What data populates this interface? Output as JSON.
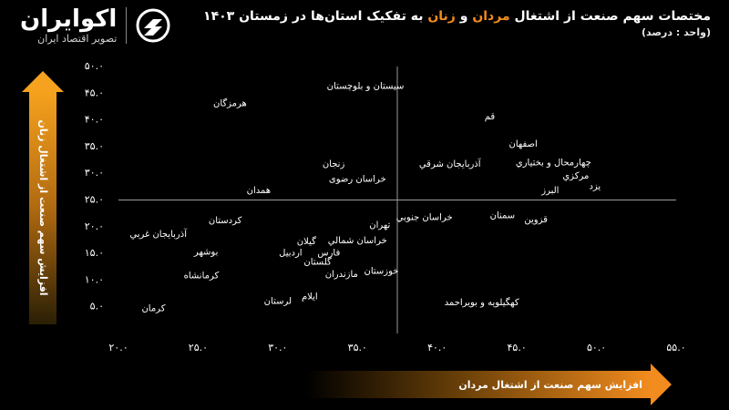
{
  "brand": {
    "name": "اکوایران",
    "tagline": "تصویر اقتصاد ایران"
  },
  "header": {
    "title_part1": "مختصات سهم صنعت از اشتغال ",
    "title_men": "مردان",
    "title_and": " و ",
    "title_women": "زنان",
    "title_part2": " به تفکیک استان‌ها در زمستان ۱۴۰۳",
    "unit": "(واحد : درصد)"
  },
  "colors": {
    "background": "#000000",
    "accent_orange": "#f28c1e",
    "arrow_dark": "#3a2a05",
    "text": "#ffffff",
    "quadrant_lines": "#9a9a9a"
  },
  "chart_data": {
    "type": "scatter",
    "xlabel": "افزایش سهم صنعت از اشتغال مردان",
    "ylabel": "افزایش سهم صنعت از اشتغال زنان",
    "xlim": [
      20,
      55
    ],
    "ylim": [
      0,
      50
    ],
    "x_ticks": [
      {
        "value": 20,
        "label": "۲۰.۰"
      },
      {
        "value": 25,
        "label": "۲۵.۰"
      },
      {
        "value": 30,
        "label": "۳۰.۰"
      },
      {
        "value": 35,
        "label": "۳۵.۰"
      },
      {
        "value": 40,
        "label": "۴۰.۰"
      },
      {
        "value": 45,
        "label": "۴۵.۰"
      },
      {
        "value": 50,
        "label": "۵۰.۰"
      },
      {
        "value": 55,
        "label": "۵۵.۰"
      }
    ],
    "y_ticks": [
      {
        "value": 5,
        "label": "۵.۰"
      },
      {
        "value": 10,
        "label": "۱۰.۰"
      },
      {
        "value": 15,
        "label": "۱۵.۰"
      },
      {
        "value": 20,
        "label": "۲۰.۰"
      },
      {
        "value": 25,
        "label": "۲۵.۰"
      },
      {
        "value": 30,
        "label": "۳۰.۰"
      },
      {
        "value": 35,
        "label": "۳۵.۰"
      },
      {
        "value": 40,
        "label": "۴۰.۰"
      },
      {
        "value": 45,
        "label": "۴۵.۰"
      },
      {
        "value": 50,
        "label": "۵۰.۰"
      }
    ],
    "divider_x": 37.5,
    "divider_y": 25,
    "grid": false,
    "points": [
      {
        "name": "سیستان و بلوچستان",
        "x": 35.5,
        "y": 46.3
      },
      {
        "name": "هرمزگان",
        "x": 27.0,
        "y": 43.1
      },
      {
        "name": "قم",
        "x": 43.3,
        "y": 40.6
      },
      {
        "name": "اصفهان",
        "x": 45.4,
        "y": 35.5
      },
      {
        "name": "زنجان",
        "x": 33.5,
        "y": 31.7
      },
      {
        "name": "آذربایجان شرقي",
        "x": 40.8,
        "y": 31.7
      },
      {
        "name": "چهارمحال و بختیاري",
        "x": 47.3,
        "y": 32.0
      },
      {
        "name": "مرکزي",
        "x": 48.7,
        "y": 29.5
      },
      {
        "name": "یزد",
        "x": 49.9,
        "y": 27.6
      },
      {
        "name": "خراسان رضوی",
        "x": 35.0,
        "y": 28.9
      },
      {
        "name": "البرز",
        "x": 47.1,
        "y": 26.8
      },
      {
        "name": "همدان",
        "x": 28.8,
        "y": 26.8
      },
      {
        "name": "خراسان جنوبي",
        "x": 39.2,
        "y": 21.8
      },
      {
        "name": "سمنان",
        "x": 44.1,
        "y": 22.1
      },
      {
        "name": "قزوین",
        "x": 46.2,
        "y": 21.3
      },
      {
        "name": "کردستان",
        "x": 26.7,
        "y": 21.2
      },
      {
        "name": "تهران",
        "x": 36.4,
        "y": 20.3
      },
      {
        "name": "آذربایجان غربي",
        "x": 22.5,
        "y": 18.6
      },
      {
        "name": "خراسان شمالي",
        "x": 35.0,
        "y": 17.4
      },
      {
        "name": "گیلان",
        "x": 31.8,
        "y": 17.2
      },
      {
        "name": "بوشهر",
        "x": 25.5,
        "y": 15.3
      },
      {
        "name": "اردبیل",
        "x": 30.8,
        "y": 15.1
      },
      {
        "name": "فارس",
        "x": 33.2,
        "y": 15.1
      },
      {
        "name": "گلستان",
        "x": 32.5,
        "y": 13.4
      },
      {
        "name": "خوزستان",
        "x": 36.5,
        "y": 11.7
      },
      {
        "name": "مازندران",
        "x": 34.0,
        "y": 11.1
      },
      {
        "name": "کرمانشاه",
        "x": 25.2,
        "y": 10.8
      },
      {
        "name": "ایلام",
        "x": 32.0,
        "y": 6.9
      },
      {
        "name": "لرستان",
        "x": 30.0,
        "y": 6.1
      },
      {
        "name": "کهگیلویه و بویراحمد",
        "x": 42.8,
        "y": 5.8
      },
      {
        "name": "کرمان",
        "x": 22.2,
        "y": 4.7
      }
    ]
  }
}
